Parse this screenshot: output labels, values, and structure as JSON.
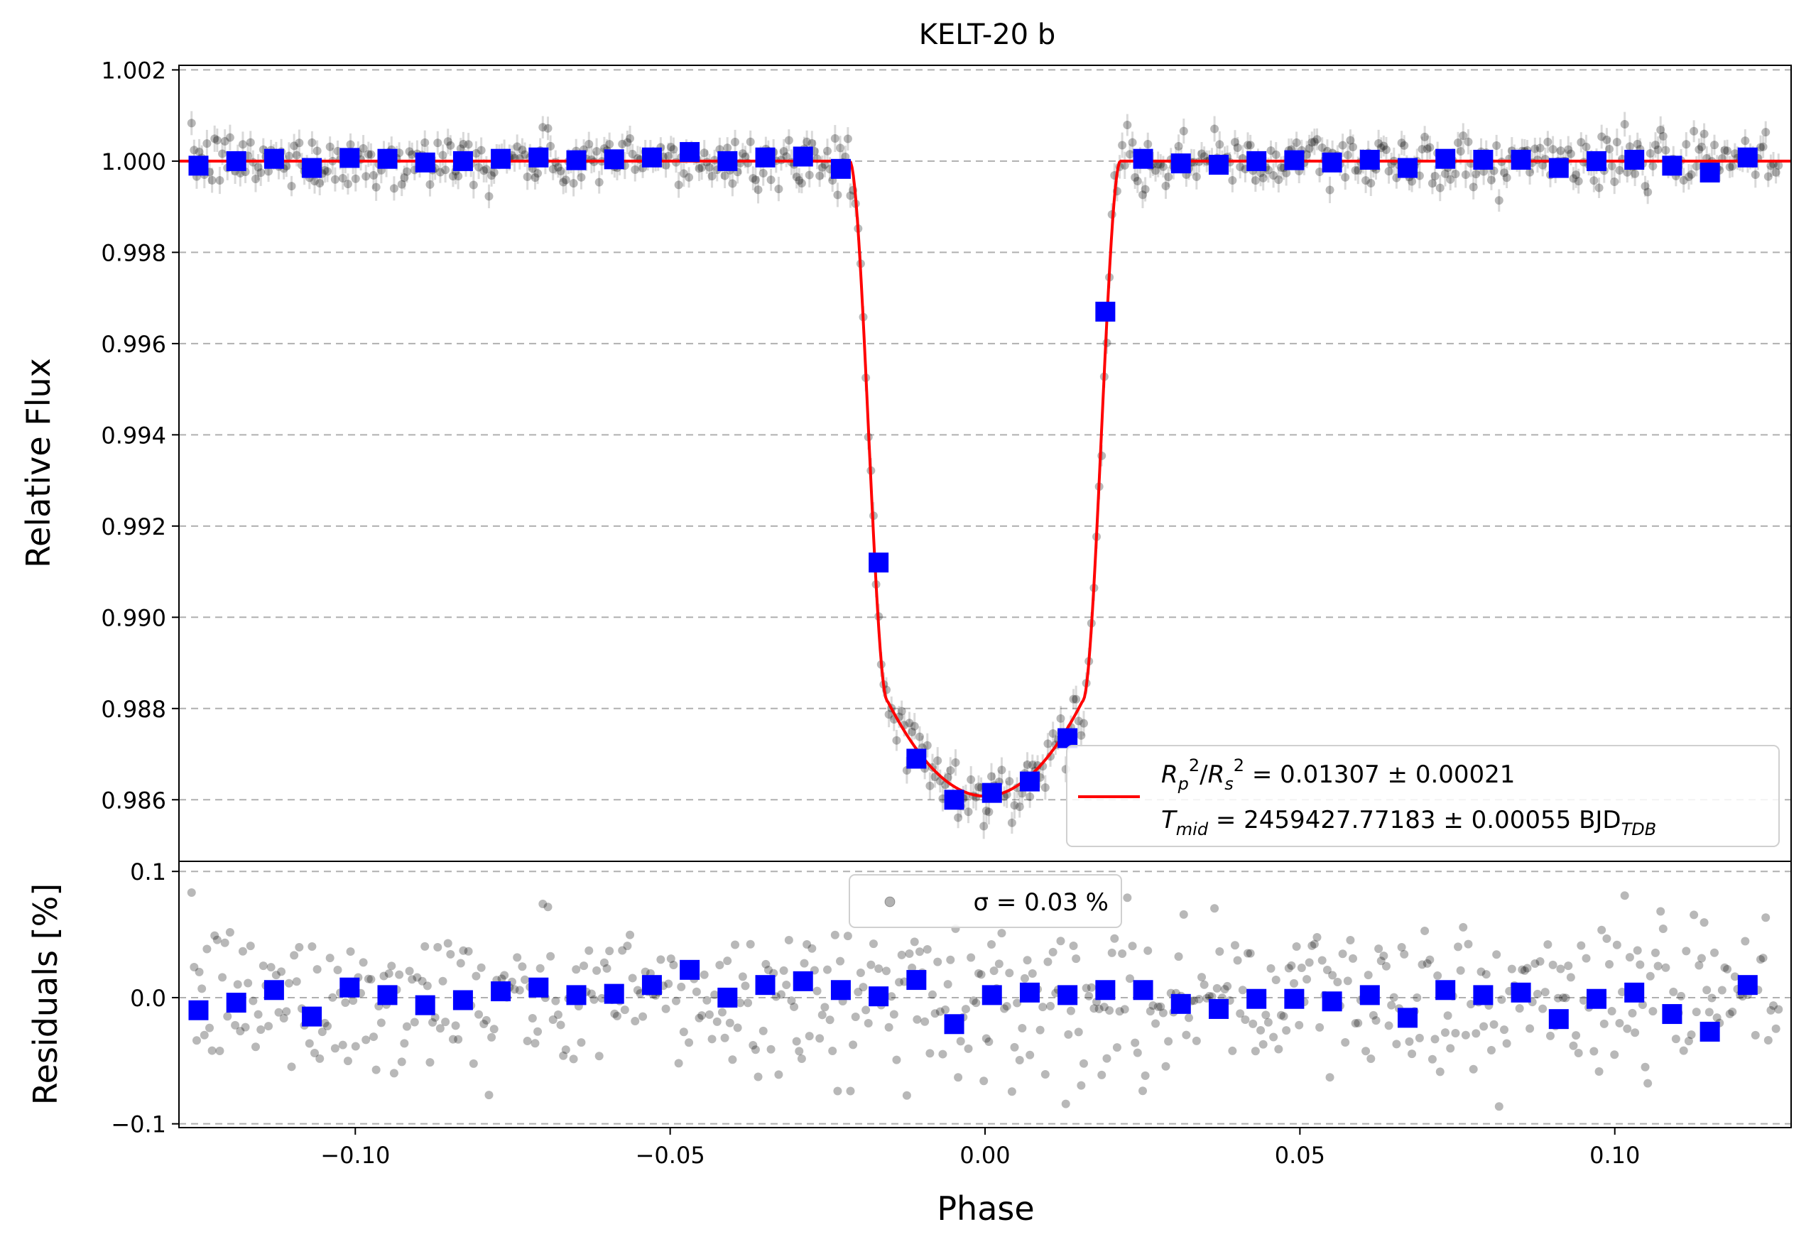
{
  "title": "KELT-20 b",
  "colors": {
    "model": "#ff0000",
    "binned": "#0000ff",
    "raw": "#000000",
    "grid": "#b0b0b0"
  },
  "chart_data": [
    {
      "type": "scatter",
      "panel": "top",
      "title": "KELT-20 b",
      "xlabel": "",
      "ylabel": "Relative Flux",
      "xlim": [
        -0.128,
        0.128
      ],
      "ylim": [
        0.98465,
        1.0021
      ],
      "yticks": [
        0.986,
        0.988,
        0.99,
        0.992,
        0.994,
        0.996,
        0.998,
        1.0,
        1.002
      ],
      "ytick_labels": [
        "0.986",
        "0.988",
        "0.990",
        "0.992",
        "0.994",
        "0.996",
        "0.998",
        "1.000",
        "1.002"
      ],
      "grid": "horizontal dashed",
      "legend": {
        "placement": "lower right",
        "line1": "R_p²/R_s² = 0.01307 ± 0.00021",
        "line2": "T_mid = 2459427.77183 ± 0.00055 BJD_TDB"
      },
      "transit_model": {
        "name": "model",
        "depth": 0.01307,
        "min_flux": 0.98608,
        "ingress_start": -0.0215,
        "ingress_end": -0.0155,
        "egress_start": 0.0155,
        "egress_end": 0.0215
      },
      "binned_series": {
        "name": "binned",
        "x": [
          -0.1249,
          -0.1189,
          -0.1129,
          -0.1069,
          -0.1009,
          -0.0949,
          -0.0889,
          -0.0829,
          -0.0769,
          -0.0709,
          -0.0649,
          -0.0589,
          -0.0529,
          -0.0469,
          -0.0409,
          -0.0349,
          -0.0289,
          -0.0229,
          -0.0169,
          -0.0109,
          -0.0049,
          0.0011,
          0.0071,
          0.0131,
          0.0191,
          0.0251,
          0.0311,
          0.0371,
          0.0431,
          0.0491,
          0.0551,
          0.0611,
          0.0671,
          0.0731,
          0.0791,
          0.0851,
          0.0911,
          0.0971,
          0.1031,
          0.1091,
          0.1151,
          0.1211
        ],
        "y": [
          0.9999,
          1.0,
          1.00005,
          0.99985,
          1.00007,
          1.00005,
          0.99997,
          1.0,
          1.00005,
          1.00008,
          1.00002,
          1.00004,
          1.00008,
          1.0002,
          1.0,
          1.00008,
          1.0001,
          0.99983,
          0.9912,
          0.9869,
          0.986,
          0.98615,
          0.9864,
          0.98735,
          0.9967,
          1.00005,
          0.99995,
          0.99992,
          1.0,
          1.00002,
          0.99997,
          1.00003,
          0.99985,
          1.00005,
          1.00003,
          1.00003,
          0.99985,
          1.0,
          1.00003,
          0.9999,
          0.99975,
          1.00008
        ]
      },
      "raw_series": {
        "name": "data",
        "points": 620,
        "scatter_ppm": 300
      }
    },
    {
      "type": "scatter",
      "panel": "bottom",
      "xlabel": "Phase",
      "ylabel": "Residuals [%]",
      "xlim": [
        -0.128,
        0.128
      ],
      "ylim": [
        -0.103,
        0.108
      ],
      "xticks": [
        -0.1,
        -0.05,
        0.0,
        0.05,
        0.1
      ],
      "xtick_labels": [
        "−0.10",
        "−0.05",
        "0.00",
        "0.05",
        "0.10"
      ],
      "yticks": [
        -0.1,
        0.0,
        0.1
      ],
      "ytick_labels": [
        "−0.1",
        "0.0",
        "0.1"
      ],
      "grid": "horizontal dashed",
      "legend": {
        "placement": "upper center",
        "label": "σ = 0.03 %"
      },
      "binned_residuals": {
        "name": "binned",
        "x": [
          -0.1249,
          -0.1189,
          -0.1129,
          -0.1069,
          -0.1009,
          -0.0949,
          -0.0889,
          -0.0829,
          -0.0769,
          -0.0709,
          -0.0649,
          -0.0589,
          -0.0529,
          -0.0469,
          -0.0409,
          -0.0349,
          -0.0289,
          -0.0229,
          -0.0169,
          -0.0109,
          -0.0049,
          0.0011,
          0.0071,
          0.0131,
          0.0191,
          0.0251,
          0.0311,
          0.0371,
          0.0431,
          0.0491,
          0.0551,
          0.0611,
          0.0671,
          0.0731,
          0.0791,
          0.0851,
          0.0911,
          0.0971,
          0.1031,
          0.1091,
          0.1151,
          0.1211
        ],
        "y": [
          -0.01,
          -0.004,
          0.006,
          -0.015,
          0.008,
          0.002,
          -0.006,
          -0.002,
          0.005,
          0.008,
          0.002,
          0.003,
          0.01,
          0.022,
          0.0,
          0.01,
          0.013,
          0.006,
          0.001,
          0.014,
          -0.021,
          0.002,
          0.004,
          0.002,
          0.006,
          0.006,
          -0.005,
          -0.009,
          -0.001,
          -0.001,
          -0.003,
          0.002,
          -0.016,
          0.006,
          0.002,
          0.004,
          -0.017,
          -0.001,
          0.004,
          -0.013,
          -0.027,
          0.01
        ]
      },
      "raw_residuals": {
        "name": "data",
        "sigma_percent": 0.03
      }
    }
  ]
}
